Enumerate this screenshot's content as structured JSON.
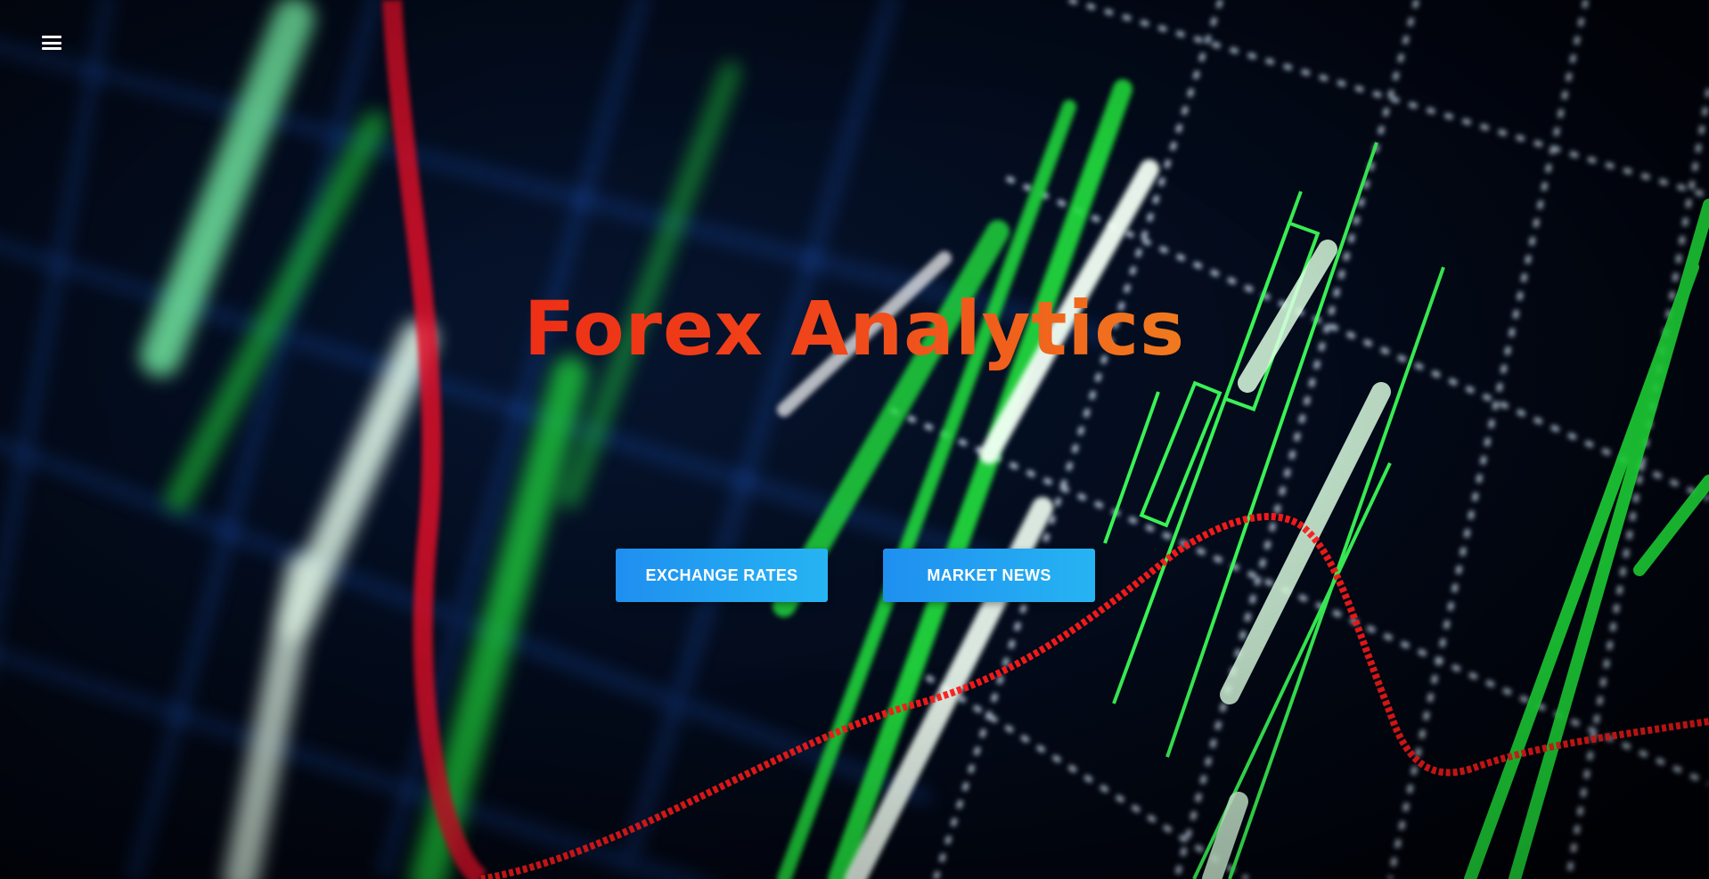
{
  "hero": {
    "title": "Forex Analytics",
    "buttons": [
      {
        "label": "EXCHANGE RATES"
      },
      {
        "label": "MARKET NEWS"
      }
    ]
  },
  "nav": {
    "menu_icon": "hamburger-menu-icon"
  },
  "colors": {
    "title_gradient_start": "#ee2f16",
    "title_gradient_end": "#f07a1e",
    "button_gradient_start": "#1f8ff0",
    "button_gradient_end": "#26b4f2",
    "background": "#02040a",
    "chart_green": "#2cf04a",
    "chart_red": "#ff1a1a",
    "grid_blue": "#1e5fd4"
  }
}
